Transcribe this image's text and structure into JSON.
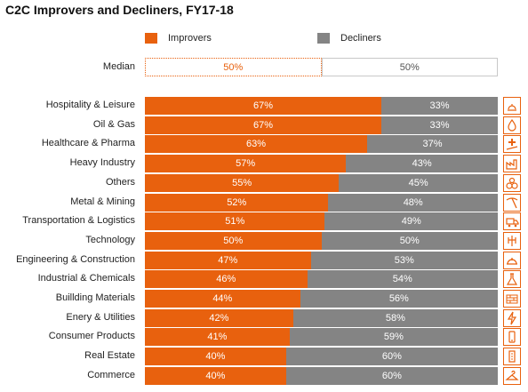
{
  "title": "C2C Improvers and Decliners, FY17-18",
  "colors": {
    "improvers": "#e8610e",
    "decliners": "#848484",
    "icon_border": "#e8610e"
  },
  "legend": {
    "improvers": "Improvers",
    "decliners": "Decliners"
  },
  "median": {
    "label": "Median",
    "improvers_label": "50%",
    "decliners_label": "50%",
    "improvers_value": 50,
    "decliners_value": 50
  },
  "chart_data": {
    "type": "bar",
    "stacked": true,
    "orientation": "horizontal",
    "percent_stacked": true,
    "title": "C2C Improvers and Decliners, FY17-18",
    "xlim": [
      0,
      100
    ],
    "legend_position": "top",
    "categories": [
      "Hospitality & Leisure",
      "Oil & Gas",
      "Healthcare & Pharma",
      "Heavy Industry",
      "Others",
      "Metal & Mining",
      "Transportation & Logistics",
      "Technology",
      "Engineering & Construction",
      "Industrial & Chemicals",
      "Buillding Materials",
      "Enery & Utilities",
      "Consumer  Products",
      "Real Estate",
      "Commerce"
    ],
    "series": [
      {
        "name": "Improvers",
        "values": [
          67,
          67,
          63,
          57,
          55,
          52,
          51,
          50,
          47,
          46,
          44,
          42,
          41,
          40,
          40
        ],
        "labels": [
          "67%",
          "67%",
          "63%",
          "57%",
          "55%",
          "52%",
          "51%",
          "50%",
          "47%",
          "46%",
          "44%",
          "42%",
          "41%",
          "40%",
          "40%"
        ]
      },
      {
        "name": "Decliners",
        "values": [
          33,
          33,
          37,
          43,
          45,
          48,
          49,
          50,
          53,
          54,
          56,
          58,
          59,
          60,
          60
        ],
        "labels": [
          "33%",
          "33%",
          "37%",
          "43%",
          "45%",
          "48%",
          "49%",
          "50%",
          "53%",
          "54%",
          "56%",
          "58%",
          "59%",
          "60%",
          "60%"
        ]
      }
    ]
  },
  "icons": [
    "hotel-bell-icon",
    "oil-drop-icon",
    "healthcare-cross-icon",
    "factory-icon",
    "gears-icon",
    "pickaxe-icon",
    "truck-icon",
    "circuit-icon",
    "hard-hat-icon",
    "flask-icon",
    "bricks-icon",
    "lightning-icon",
    "phone-icon",
    "building-icon",
    "hanger-icon"
  ]
}
